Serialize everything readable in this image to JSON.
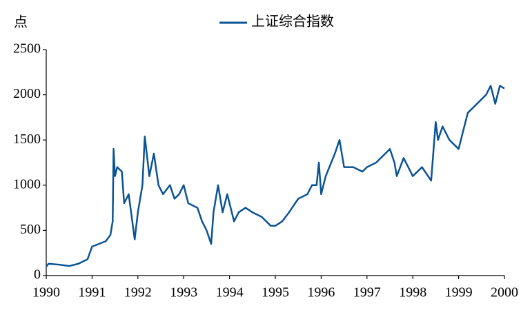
{
  "chart_data": {
    "type": "line",
    "y_label": "点",
    "x": [
      1990.0,
      1990.05,
      1990.3,
      1990.5,
      1990.7,
      1990.9,
      1991.0,
      1991.3,
      1991.4,
      1991.45,
      1991.47,
      1991.5,
      1991.55,
      1991.65,
      1991.7,
      1991.8,
      1991.93,
      1992.0,
      1992.1,
      1992.15,
      1992.25,
      1992.35,
      1992.45,
      1992.55,
      1992.7,
      1992.8,
      1992.9,
      1993.0,
      1993.1,
      1993.3,
      1993.4,
      1993.5,
      1993.6,
      1993.65,
      1993.75,
      1993.85,
      1993.95,
      1994.1,
      1994.2,
      1994.35,
      1994.5,
      1994.7,
      1994.9,
      1995.0,
      1995.15,
      1995.3,
      1995.5,
      1995.7,
      1995.8,
      1995.9,
      1995.95,
      1996.0,
      1996.1,
      1996.3,
      1996.4,
      1996.5,
      1996.7,
      1996.9,
      1997.0,
      1997.2,
      1997.4,
      1997.5,
      1997.6,
      1997.65,
      1997.8,
      1997.9,
      1998.0,
      1998.2,
      1998.4,
      1998.5,
      1998.55,
      1998.65,
      1998.8,
      1998.9,
      1999.0,
      1999.1,
      1999.2,
      1999.4,
      1999.6,
      1999.7,
      1999.8,
      1999.9,
      2000.0
    ],
    "series": [
      {
        "name": "上证综合指数",
        "color": "#0b5394",
        "values": [
          100,
          130,
          120,
          105,
          130,
          180,
          320,
          380,
          450,
          600,
          1400,
          1100,
          1200,
          1150,
          800,
          900,
          400,
          700,
          1000,
          1540,
          1100,
          1350,
          1000,
          900,
          1000,
          850,
          900,
          1000,
          800,
          750,
          600,
          500,
          350,
          700,
          1000,
          700,
          900,
          600,
          700,
          750,
          700,
          650,
          550,
          550,
          600,
          700,
          850,
          900,
          1000,
          1000,
          1250,
          900,
          1100,
          1350,
          1500,
          1200,
          1200,
          1150,
          1200,
          1250,
          1350,
          1400,
          1250,
          1100,
          1300,
          1200,
          1100,
          1200,
          1050,
          1700,
          1500,
          1650,
          1500,
          1450,
          1400,
          1600,
          1800,
          1900,
          2000,
          2100,
          1900,
          2100,
          2070
        ]
      }
    ],
    "xlim": [
      1990,
      2000
    ],
    "xticks": [
      1990,
      1991,
      1992,
      1993,
      1994,
      1995,
      1996,
      1997,
      1998,
      1999,
      2000
    ],
    "ylim": [
      0,
      2500
    ],
    "yticks": [
      0,
      500,
      1000,
      1500,
      2000,
      2500
    ]
  }
}
